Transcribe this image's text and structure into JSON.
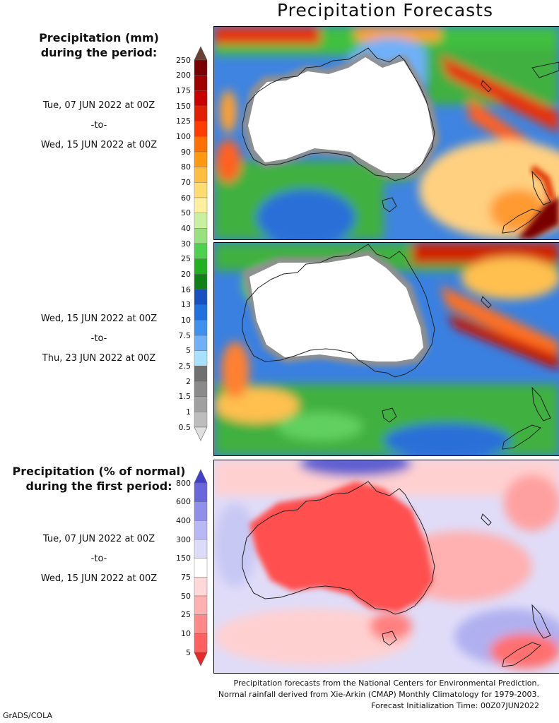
{
  "title": "Precipitation Forecasts",
  "panel1": {
    "heading_line1": "Precipitation (mm)",
    "heading_line2": "during the period:",
    "start": "Tue, 07 JUN 2022 at 00Z",
    "sep": "-to-",
    "end": "Wed, 15 JUN 2022 at 00Z"
  },
  "panel2": {
    "start": "Wed, 15 JUN 2022 at 00Z",
    "sep": "-to-",
    "end": "Thu, 23 JUN 2022 at 00Z"
  },
  "panel3": {
    "heading_line1": "Precipitation (% of normal)",
    "heading_line2": "during the first period:",
    "start": "Tue, 07 JUN 2022 at 00Z",
    "sep": "-to-",
    "end": "Wed, 15 JUN 2022 at 00Z"
  },
  "precip_scale": {
    "levels": [
      "250",
      "200",
      "175",
      "150",
      "125",
      "100",
      "90",
      "80",
      "70",
      "60",
      "50",
      "40",
      "30",
      "25",
      "20",
      "16",
      "13",
      "10",
      "7.5",
      "5",
      "2.5",
      "2",
      "1.5",
      "1",
      "0.5"
    ],
    "colors": [
      "#6b3f33",
      "#7a0000",
      "#a00000",
      "#c80000",
      "#e02000",
      "#ff3c00",
      "#ff7000",
      "#ff9a10",
      "#ffbe40",
      "#ffdc70",
      "#fff0a0",
      "#c8f0a0",
      "#98e080",
      "#50d050",
      "#20b020",
      "#108018",
      "#1850c0",
      "#2070e0",
      "#4090f0",
      "#70b0f8",
      "#a8e0ff",
      "#707070",
      "#8a8a8a",
      "#a0a0a0",
      "#bdbdbd",
      "#e0e0e0"
    ]
  },
  "pct_scale": {
    "levels": [
      "800",
      "600",
      "400",
      "300",
      "150",
      "75",
      "50",
      "25",
      "10",
      "5"
    ],
    "colors": [
      "#4040c8",
      "#6868dc",
      "#9090ec",
      "#b8b8f4",
      "#dcdcfa",
      "#ffffff",
      "#ffd8d8",
      "#ffb0b0",
      "#ff8888",
      "#ff6060",
      "#e82828"
    ]
  },
  "footer": {
    "line1": "Precipitation forecasts from the National Centers for Environmental Prediction.",
    "line2": "Normal rainfall derived from Xie-Arkin (CMAP) Monthly Climatology for 1979-2003.",
    "line3": "Forecast Initialization Time: 00Z07JUN2022"
  },
  "credit": "GrADS/COLA"
}
